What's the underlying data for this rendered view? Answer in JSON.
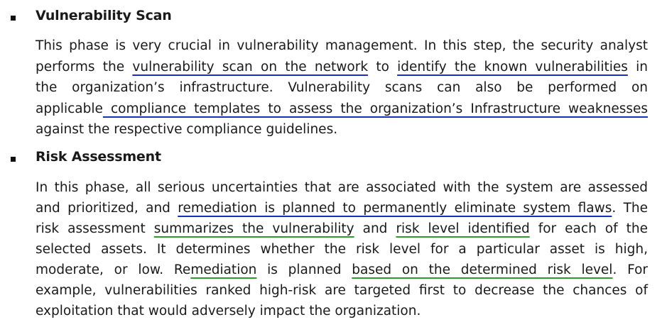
{
  "section1": {
    "heading": "Vulnerability Scan",
    "lines": [
      {
        "a": "This phase is very crucial in vulnerability management. In this step, the security analyst"
      },
      {
        "a": "performs the ",
        "u1": "vulnerability scan on the network",
        "b": " to ",
        "u2": "identify the known vulnerabilities",
        "c": " in"
      },
      {
        "a": "the organization’s infrastructure. Vulnerability scans can also be performed on"
      },
      {
        "a": "applicable",
        "u1": " compliance templates to assess the organization’s Infrastructure weaknesses"
      },
      {
        "a": "against the respective compliance guidelines."
      }
    ]
  },
  "section2": {
    "heading": "Risk Assessment",
    "lines": [
      {
        "a": "In this phase, all serious uncertainties that are associated with the system are assessed"
      },
      {
        "a": "and prioritized, and ",
        "u1": "remediation is planned to permanently eliminate system flaws",
        "b": ". The"
      },
      {
        "a": "risk assessment ",
        "u1": "summarizes the vulnerability",
        "b": " and ",
        "u2": "risk level identified",
        "c": " for each of the"
      },
      {
        "a": "selected assets. It determines whether the risk level for a particular asset is high,"
      },
      {
        "a": "moderate, or low. Re",
        "u1": "mediation",
        "b": " is planned ",
        "u2": "based on the determined risk level",
        "c": ". For"
      },
      {
        "a": "example, vulnerabilities ranked high-risk are targeted first to decrease the chances of"
      },
      {
        "a": "exploitation that would adversely impact the organization."
      }
    ]
  },
  "colors": {
    "underline_blue": "#1c2fb8",
    "underline_green": "#2e9a2e"
  }
}
